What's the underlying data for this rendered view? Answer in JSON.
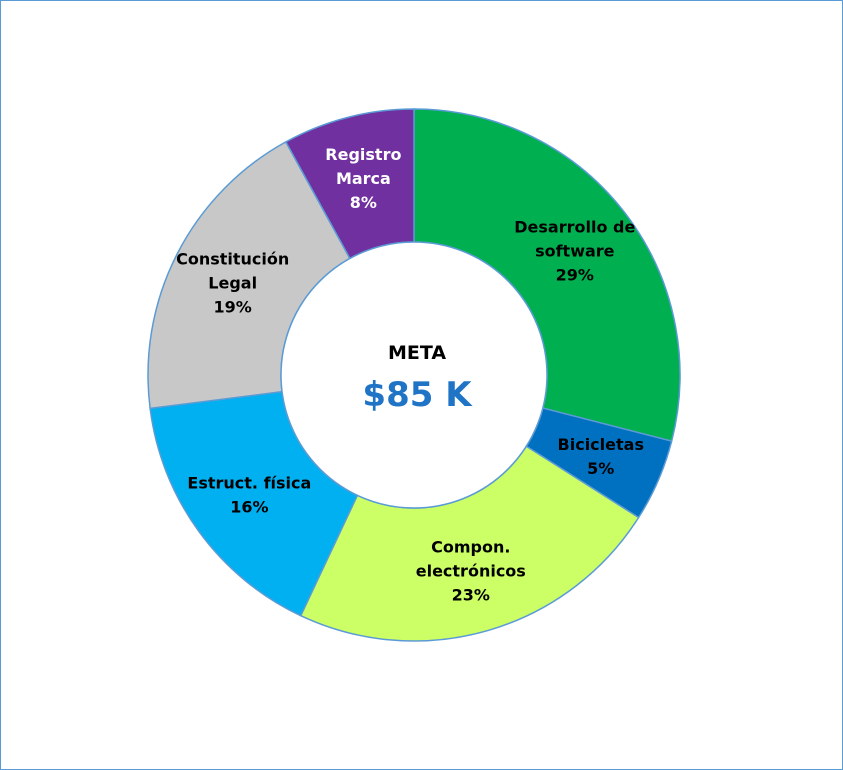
{
  "chart_data": {
    "type": "donut",
    "center": {
      "title": "META",
      "value": "$85 K",
      "value_color": "#1f74c6"
    },
    "slices": [
      {
        "label": [
          "Desarrollo de",
          "software"
        ],
        "percent_label": "29%",
        "value": 29,
        "color": "#00b050",
        "text_color": "#000000"
      },
      {
        "label": [
          "Bicicletas"
        ],
        "percent_label": "5%",
        "value": 5,
        "color": "#0070c0",
        "text_color": "#000000"
      },
      {
        "label": [
          "Compon.",
          "electrónicos"
        ],
        "percent_label": "23%",
        "value": 23,
        "color": "#ccff66",
        "text_color": "#000000"
      },
      {
        "label": [
          "Estruct. física"
        ],
        "percent_label": "16%",
        "value": 16,
        "color": "#00b0f0",
        "text_color": "#000000"
      },
      {
        "label": [
          "Constitución",
          "Legal"
        ],
        "percent_label": "19%",
        "value": 19,
        "color": "#c8c8c8",
        "text_color": "#000000"
      },
      {
        "label": [
          "Registro",
          "Marca"
        ],
        "percent_label": "8%",
        "value": 8,
        "color": "#7030a0",
        "text_color": "#ffffff"
      }
    ],
    "border_color": "#5b9bd5",
    "legend": "none"
  }
}
